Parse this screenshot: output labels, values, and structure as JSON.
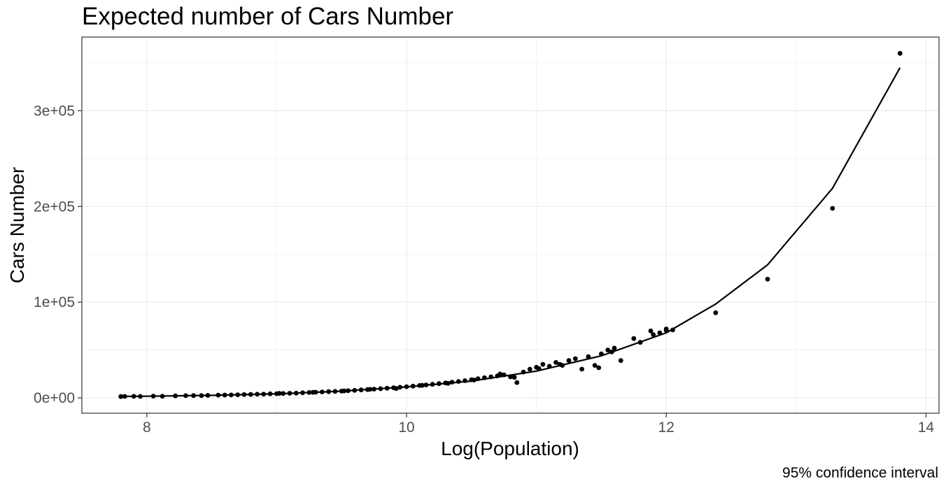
{
  "chart_data": {
    "type": "scatter",
    "title": "Expected number of Cars Number",
    "xlabel": "Log(Population)",
    "ylabel": "Cars Number",
    "caption": "95% confidence interval",
    "xlim": [
      7.5,
      14.1
    ],
    "ylim": [
      -16000,
      377000
    ],
    "x_ticks": [
      8,
      10,
      12,
      14
    ],
    "x_tick_labels": [
      "8",
      "10",
      "12",
      "14"
    ],
    "y_ticks": [
      0,
      100000,
      200000,
      300000
    ],
    "y_tick_labels": [
      "0e+00",
      "1e+05",
      "2e+05",
      "3e+05"
    ],
    "grid": true,
    "colors": {
      "points": "#000000",
      "line": "#000000",
      "grid": "#ebebeb",
      "panel_border": "#333333"
    },
    "points": [
      [
        7.8,
        1400
      ],
      [
        7.83,
        1500
      ],
      [
        7.9,
        1600
      ],
      [
        7.95,
        1500
      ],
      [
        8.05,
        1800
      ],
      [
        8.12,
        1700
      ],
      [
        8.22,
        2100
      ],
      [
        8.3,
        2300
      ],
      [
        8.36,
        2400
      ],
      [
        8.42,
        2400
      ],
      [
        8.47,
        2600
      ],
      [
        8.55,
        2900
      ],
      [
        8.6,
        3000
      ],
      [
        8.65,
        3100
      ],
      [
        8.7,
        3300
      ],
      [
        8.75,
        3400
      ],
      [
        8.8,
        3600
      ],
      [
        8.85,
        3800
      ],
      [
        8.9,
        3900
      ],
      [
        8.95,
        4200
      ],
      [
        9.0,
        4400
      ],
      [
        9.05,
        4600
      ],
      [
        9.1,
        4800
      ],
      [
        9.15,
        5000
      ],
      [
        9.2,
        5300
      ],
      [
        9.25,
        5600
      ],
      [
        9.3,
        5900
      ],
      [
        9.35,
        6200
      ],
      [
        9.4,
        6500
      ],
      [
        9.45,
        6800
      ],
      [
        9.5,
        7100
      ],
      [
        9.55,
        7500
      ],
      [
        9.6,
        7900
      ],
      [
        9.65,
        8300
      ],
      [
        9.7,
        8700
      ],
      [
        9.75,
        9100
      ],
      [
        9.8,
        9600
      ],
      [
        9.85,
        10100
      ],
      [
        9.9,
        10600
      ],
      [
        9.95,
        11100
      ],
      [
        10.0,
        11700
      ],
      [
        10.05,
        12300
      ],
      [
        10.1,
        12900
      ],
      [
        10.15,
        13500
      ],
      [
        10.2,
        14200
      ],
      [
        10.25,
        14900
      ],
      [
        10.3,
        15600
      ],
      [
        10.35,
        16400
      ],
      [
        10.4,
        17200
      ],
      [
        10.45,
        18000
      ],
      [
        10.5,
        19000
      ],
      [
        10.55,
        20000
      ],
      [
        10.6,
        21000
      ],
      [
        10.65,
        22000
      ],
      [
        10.7,
        23000
      ],
      [
        10.75,
        24000
      ],
      [
        10.8,
        22000
      ],
      [
        10.85,
        16000
      ],
      [
        10.9,
        27000
      ],
      [
        10.95,
        30000
      ],
      [
        11.0,
        32000
      ],
      [
        11.05,
        35000
      ],
      [
        11.1,
        33000
      ],
      [
        11.15,
        37000
      ],
      [
        11.2,
        34000
      ],
      [
        11.25,
        39000
      ],
      [
        11.3,
        41000
      ],
      [
        11.35,
        30000
      ],
      [
        11.4,
        43000
      ],
      [
        11.45,
        34000
      ],
      [
        11.5,
        46000
      ],
      [
        11.55,
        50000
      ],
      [
        11.6,
        52000
      ],
      [
        11.65,
        39000
      ],
      [
        11.75,
        62000
      ],
      [
        11.8,
        58000
      ],
      [
        11.88,
        70000
      ],
      [
        11.95,
        68000
      ],
      [
        12.0,
        72000
      ],
      [
        12.05,
        71000
      ],
      [
        12.38,
        89000
      ],
      [
        12.78,
        124000
      ],
      [
        13.28,
        198000
      ],
      [
        13.8,
        360000
      ],
      [
        9.02,
        4700
      ],
      [
        9.28,
        5800
      ],
      [
        9.52,
        7300
      ],
      [
        9.72,
        8900
      ],
      [
        9.92,
        9800
      ],
      [
        10.12,
        13100
      ],
      [
        10.32,
        15200
      ],
      [
        10.52,
        18600
      ],
      [
        10.72,
        25000
      ],
      [
        10.83,
        21500
      ],
      [
        11.02,
        30500
      ],
      [
        11.18,
        35000
      ],
      [
        11.48,
        31500
      ],
      [
        11.58,
        48000
      ],
      [
        11.9,
        66000
      ],
      [
        12.0,
        70500
      ]
    ],
    "line": [
      [
        7.8,
        1500
      ],
      [
        8.0,
        1750
      ],
      [
        8.5,
        2600
      ],
      [
        9.0,
        4200
      ],
      [
        9.5,
        7000
      ],
      [
        10.0,
        11500
      ],
      [
        10.5,
        17500
      ],
      [
        11.0,
        28000
      ],
      [
        11.5,
        44000
      ],
      [
        12.0,
        68000
      ],
      [
        12.38,
        98000
      ],
      [
        12.78,
        139000
      ],
      [
        13.28,
        219000
      ],
      [
        13.8,
        345000
      ]
    ]
  }
}
